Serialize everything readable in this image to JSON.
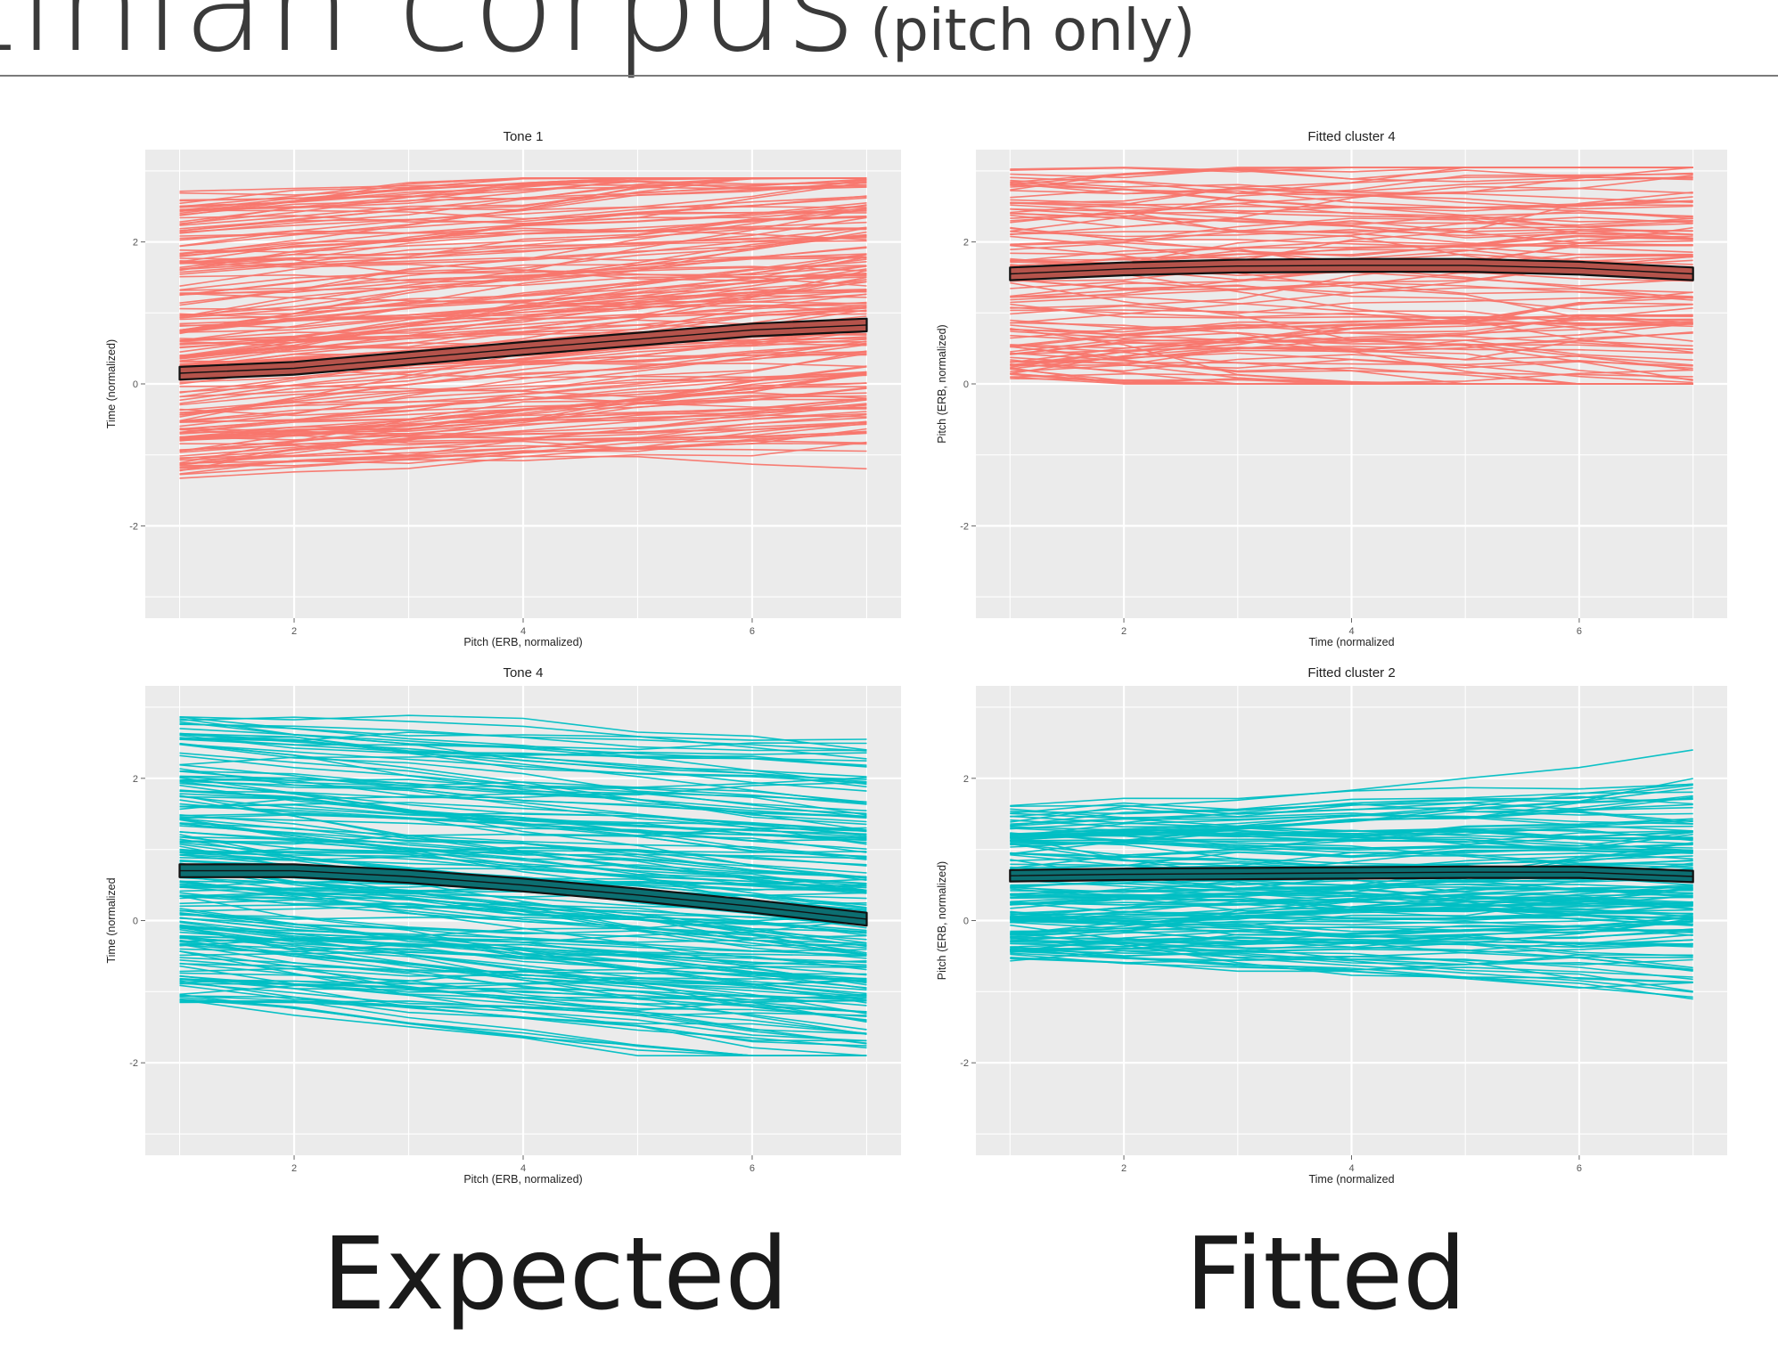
{
  "slide": {
    "title_main": "tinian corpus",
    "title_sub": "(pitch only)",
    "captions": {
      "left": "Expected",
      "right": "Fitted"
    }
  },
  "colors": {
    "tone1": "#f8766d",
    "tone4": "#00bfc4",
    "mean_fill_red": "#b5534b",
    "mean_fill_teal": "#0c6e71",
    "mean_stroke": "#111111",
    "panel_bg": "#ebebeb",
    "grid": "#ffffff"
  },
  "chart_data": [
    {
      "type": "line",
      "title": "Tone 1",
      "xlabel": "Pitch (ERB, normalized)",
      "ylabel": "Time (normalized)",
      "xlim": [
        0.7,
        7.3
      ],
      "ylim": [
        -3.3,
        3.3
      ],
      "xticks": [
        2,
        4,
        6
      ],
      "yticks": [
        -2,
        0,
        2
      ],
      "color_key": "tone1",
      "mean_fill_key": "mean_fill_red",
      "x": [
        1,
        2,
        3,
        4,
        5,
        6,
        7
      ],
      "mean": [
        0.15,
        0.22,
        0.36,
        0.5,
        0.63,
        0.76,
        0.83
      ],
      "band_width": 0.18,
      "n_lines": 180,
      "spread": {
        "start": [
          -1.35,
          2.7
        ],
        "end": [
          -1.0,
          2.8
        ],
        "slope_mean": 0.11,
        "slope_sd": 0.09,
        "wobble": 0.12
      },
      "seed": 11
    },
    {
      "type": "line",
      "title": "Fitted cluster 4",
      "xlabel": "Time (normalized",
      "ylabel": "Pitch (ERB, normalized)",
      "xlim": [
        0.7,
        7.3
      ],
      "ylim": [
        -3.3,
        3.3
      ],
      "xticks": [
        2,
        4,
        6
      ],
      "yticks": [
        -2,
        0,
        2
      ],
      "color_key": "tone1",
      "mean_fill_key": "mean_fill_red",
      "x": [
        1,
        2,
        3,
        4,
        5,
        6,
        7
      ],
      "mean": [
        1.55,
        1.62,
        1.66,
        1.67,
        1.67,
        1.63,
        1.55
      ],
      "band_width": 0.18,
      "n_lines": 110,
      "spread": {
        "start": [
          0.1,
          2.95
        ],
        "end": [
          0.1,
          2.85
        ],
        "slope_mean": 0.0,
        "slope_sd": 0.12,
        "wobble": 0.18
      },
      "seed": 23
    },
    {
      "type": "line",
      "title": "Tone 4",
      "xlabel": "Pitch (ERB, normalized)",
      "ylabel": "Time (normalized",
      "xlim": [
        0.7,
        7.3
      ],
      "ylim": [
        -3.3,
        3.3
      ],
      "xticks": [
        2,
        4,
        6
      ],
      "yticks": [
        -2,
        0,
        2
      ],
      "color_key": "tone4",
      "mean_fill_key": "mean_fill_teal",
      "x": [
        1,
        2,
        3,
        4,
        5,
        6,
        7
      ],
      "mean": [
        0.7,
        0.7,
        0.62,
        0.5,
        0.36,
        0.2,
        0.02
      ],
      "band_width": 0.18,
      "n_lines": 180,
      "spread": {
        "start": [
          -1.15,
          2.85
        ],
        "end": [
          -1.8,
          2.65
        ],
        "slope_mean": -0.11,
        "slope_sd": 0.09,
        "wobble": 0.12
      },
      "seed": 37
    },
    {
      "type": "line",
      "title": "Fitted cluster 2",
      "xlabel": "Time (normalized",
      "ylabel": "Pitch (ERB, normalized)",
      "xlim": [
        0.7,
        7.3
      ],
      "ylim": [
        -3.3,
        3.3
      ],
      "xticks": [
        2,
        4,
        6
      ],
      "yticks": [
        -2,
        0,
        2
      ],
      "color_key": "tone4",
      "mean_fill_key": "mean_fill_teal",
      "x": [
        1,
        2,
        3,
        4,
        5,
        6,
        7
      ],
      "mean": [
        0.63,
        0.65,
        0.66,
        0.67,
        0.68,
        0.68,
        0.62
      ],
      "band_width": 0.16,
      "n_lines": 150,
      "spread": {
        "start": [
          -0.55,
          1.6
        ],
        "end": [
          -1.1,
          2.3
        ],
        "slope_mean": 0.0,
        "slope_sd": 0.08,
        "wobble": 0.15
      },
      "seed": 51
    }
  ]
}
